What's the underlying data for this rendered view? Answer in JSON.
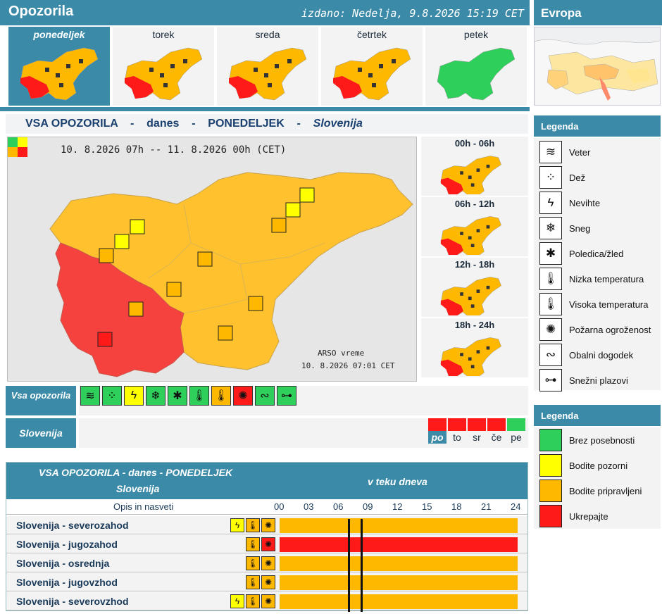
{
  "header": {
    "title": "Opozorila",
    "issued": "izdano: Nedelja, 9.8.2026 15:19 CET",
    "europe_title": "Evropa"
  },
  "colors": {
    "accent": "#3a8aa8",
    "green": "#2fcf5b",
    "yellow": "#ffff00",
    "orange": "#ffb800",
    "red": "#ff1a1a"
  },
  "days": [
    {
      "label": "ponedeljek",
      "selected": true,
      "state": "orange-red"
    },
    {
      "label": "torek",
      "selected": false,
      "state": "orange-red"
    },
    {
      "label": "sreda",
      "selected": false,
      "state": "orange-red"
    },
    {
      "label": "četrtek",
      "selected": false,
      "state": "orange-red"
    },
    {
      "label": "petek",
      "selected": false,
      "state": "green"
    }
  ],
  "section": {
    "part1": "VSA OPOZORILA",
    "dash1": "-",
    "part2": "danes",
    "dash2": "-",
    "part3": "PONEDELJEK",
    "dash3": "-",
    "part4": "Slovenija"
  },
  "map": {
    "period": "10. 8.2026  07h  --  11. 8.2026  00h    (CET)",
    "source": "ARSO vreme",
    "stamp": "10. 8.2026  07:01 CET"
  },
  "hourly": [
    {
      "label": "00h - 06h"
    },
    {
      "label": "06h - 12h"
    },
    {
      "label": "12h - 18h"
    },
    {
      "label": "18h - 24h"
    }
  ],
  "filter": {
    "all_label": "Vsa opozorila",
    "region_label": "Slovenija",
    "icons": [
      {
        "name": "wind-icon",
        "glyph": "≋",
        "bg": "#2fcf5b"
      },
      {
        "name": "rain-icon",
        "glyph": "⁘",
        "bg": "#2fcf5b"
      },
      {
        "name": "thunder-icon",
        "glyph": "ϟ",
        "bg": "#ffff00"
      },
      {
        "name": "snow-icon",
        "glyph": "❄",
        "bg": "#2fcf5b"
      },
      {
        "name": "ice-icon",
        "glyph": "✱",
        "bg": "#2fcf5b"
      },
      {
        "name": "low-temp-icon",
        "glyph": "🌡",
        "bg": "#2fcf5b"
      },
      {
        "name": "high-temp-icon",
        "glyph": "🌡",
        "bg": "#ffb800"
      },
      {
        "name": "fire-icon",
        "glyph": "✺",
        "bg": "#ff1a1a"
      },
      {
        "name": "coastal-icon",
        "glyph": "∾",
        "bg": "#2fcf5b"
      },
      {
        "name": "avalanche-icon",
        "glyph": "⊶",
        "bg": "#2fcf5b"
      }
    ],
    "weekdays": [
      {
        "label": "po",
        "color": "#ff1a1a",
        "selected": true
      },
      {
        "label": "to",
        "color": "#ff1a1a",
        "selected": false
      },
      {
        "label": "sr",
        "color": "#ff1a1a",
        "selected": false
      },
      {
        "label": "če",
        "color": "#ff1a1a",
        "selected": false
      },
      {
        "label": "pe",
        "color": "#2fcf5b",
        "selected": false
      }
    ]
  },
  "legend1": {
    "title": "Legenda",
    "items": [
      {
        "label": "Veter",
        "icon": "wind-icon",
        "glyph": "≋"
      },
      {
        "label": "Dež",
        "icon": "rain-icon",
        "glyph": "⁘"
      },
      {
        "label": "Nevihte",
        "icon": "thunder-icon",
        "glyph": "ϟ"
      },
      {
        "label": "Sneg",
        "icon": "snow-icon",
        "glyph": "❄"
      },
      {
        "label": "Poledica/žled",
        "icon": "ice-icon",
        "glyph": "✱"
      },
      {
        "label": "Nizka temperatura",
        "icon": "low-temp-icon",
        "glyph": "🌡"
      },
      {
        "label": "Visoka temperatura",
        "icon": "high-temp-icon",
        "glyph": "🌡"
      },
      {
        "label": "Požarna ogroženost",
        "icon": "fire-icon",
        "glyph": "✺"
      },
      {
        "label": "Obalni dogodek",
        "icon": "coastal-icon",
        "glyph": "∾"
      },
      {
        "label": "Snežni plazovi",
        "icon": "avalanche-icon",
        "glyph": "⊶"
      }
    ]
  },
  "legend2": {
    "title": "Legenda",
    "items": [
      {
        "label": "Brez posebnosti",
        "color": "#2fcf5b"
      },
      {
        "label": "Bodite pozorni",
        "color": "#ffff00"
      },
      {
        "label": "Bodite pripravljeni",
        "color": "#ffb800"
      },
      {
        "label": "Ukrepajte",
        "color": "#ff1a1a"
      }
    ]
  },
  "timeline": {
    "title1": "VSA OPOZORILA - danes - PONEDELJEK",
    "title2": "Slovenija",
    "title3": "v teku dneva",
    "col_label": "Opis in nasveti",
    "hours": [
      "00",
      "03",
      "06",
      "09",
      "12",
      "15",
      "18",
      "21",
      "24"
    ],
    "rows": [
      {
        "region": "Slovenija - severozahod",
        "color": "#ffb800",
        "icons": [
          {
            "glyph": "ϟ",
            "bg": "#ffff00"
          },
          {
            "glyph": "🌡",
            "bg": "#ffb800"
          },
          {
            "glyph": "✺",
            "bg": "#ffb800"
          }
        ]
      },
      {
        "region": "Slovenija - jugozahod",
        "color": "#ff1a1a",
        "icons": [
          {
            "glyph": "🌡",
            "bg": "#ffb800"
          },
          {
            "glyph": "✺",
            "bg": "#ff1a1a"
          }
        ]
      },
      {
        "region": "Slovenija - osrednja",
        "color": "#ffb800",
        "icons": [
          {
            "glyph": "🌡",
            "bg": "#ffb800"
          },
          {
            "glyph": "✺",
            "bg": "#ffb800"
          }
        ]
      },
      {
        "region": "Slovenija - jugovzhod",
        "color": "#ffb800",
        "icons": [
          {
            "glyph": "🌡",
            "bg": "#ffb800"
          },
          {
            "glyph": "✺",
            "bg": "#ffb800"
          }
        ]
      },
      {
        "region": "Slovenija - severovzhod",
        "color": "#ffb800",
        "icons": [
          {
            "glyph": "ϟ",
            "bg": "#ffff00"
          },
          {
            "glyph": "🌡",
            "bg": "#ffb800"
          },
          {
            "glyph": "✺",
            "bg": "#ffb800"
          }
        ]
      }
    ]
  }
}
